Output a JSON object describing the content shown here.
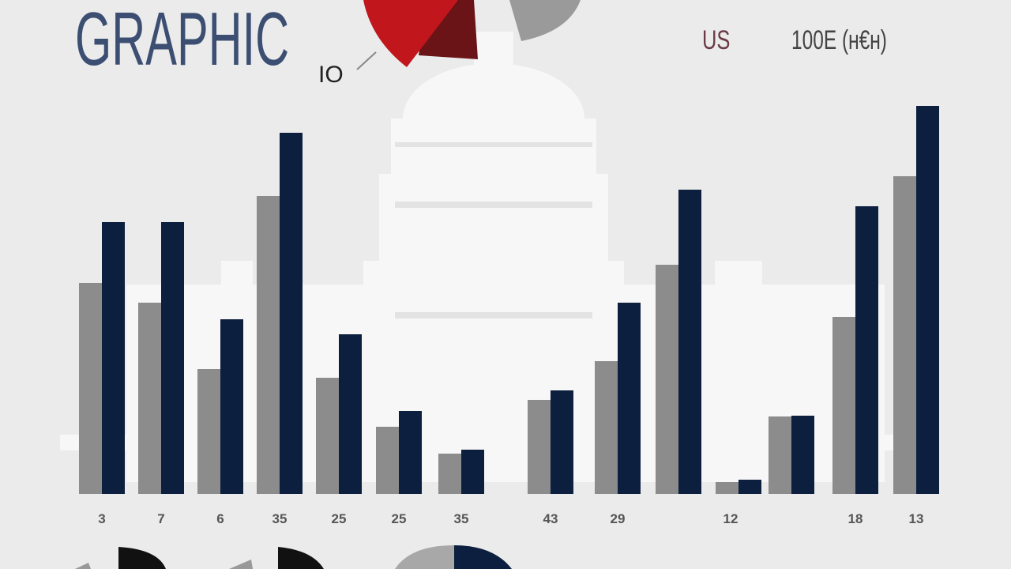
{
  "title": "GRAPHIC",
  "labels": [
    "IO",
    "US",
    "100E (ʜ€ʜ)"
  ],
  "chart_data": {
    "type": "bar",
    "categories": [
      "3",
      "7",
      "6",
      "35",
      "25",
      "25",
      "35",
      "43",
      "29",
      null,
      "12",
      null,
      "18",
      "13"
    ],
    "series": [
      {
        "color": "#8c8c8c",
        "values": [
          267,
          242,
          158,
          377,
          147,
          85,
          51,
          119,
          168,
          290,
          15,
          98,
          224,
          402
        ]
      },
      {
        "color": "#0d1f3e",
        "values": [
          344,
          344,
          221,
          457,
          202,
          105,
          56,
          131,
          242,
          385,
          18,
          99,
          364,
          491
        ]
      }
    ],
    "ylim": [
      0,
      500
    ]
  }
}
